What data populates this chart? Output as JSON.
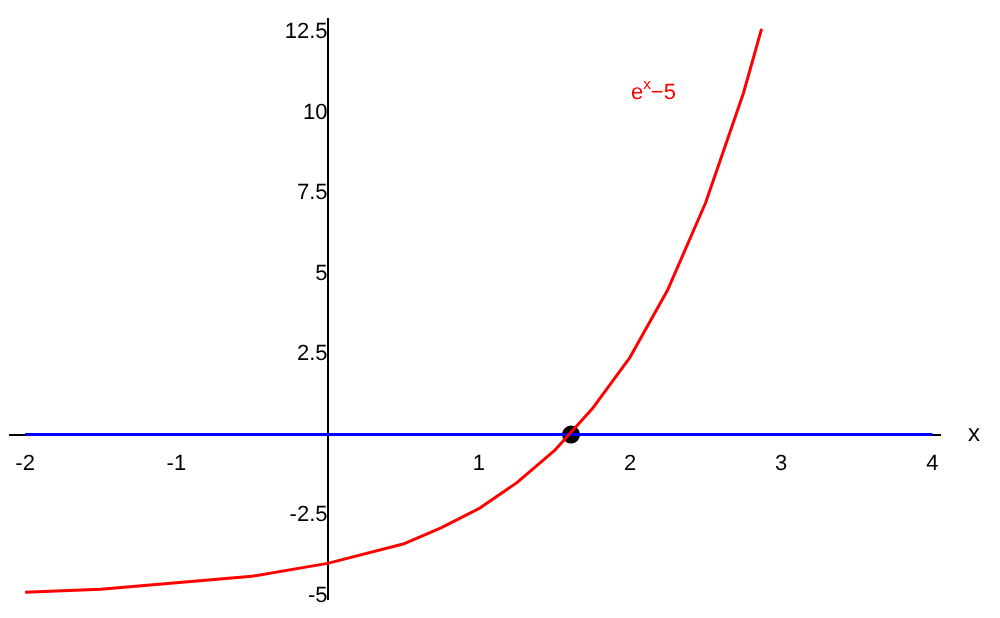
{
  "chart_data": {
    "type": "line",
    "xlabel": "x",
    "xlim": [
      -2.1,
      4.05
    ],
    "ylim": [
      -5.1,
      12.9
    ],
    "xticks": [
      -2,
      -1,
      1,
      2,
      3,
      4
    ],
    "yticks": [
      -5,
      -2.5,
      2.5,
      5,
      7.5,
      10,
      12.5
    ],
    "grid": false,
    "legend": false,
    "marker": "none",
    "series": [
      {
        "name": "e$^{x}$−5",
        "color": "#ff0000",
        "x": [
          -2,
          -1.5,
          -1,
          -0.5,
          0,
          0.5,
          0.75,
          1,
          1.25,
          1.5,
          1.75,
          2,
          2.25,
          2.5,
          2.75,
          2.87
        ],
        "values": [
          -4.9,
          -4.8,
          -4.6,
          -4.4,
          -4,
          -3.4,
          -2.9,
          -2.3,
          -1.5,
          -0.5,
          0.8,
          2.4,
          4.5,
          7.2,
          10.6,
          12.6
        ]
      },
      {
        "color": "#0000ff",
        "x": [
          -2,
          4
        ],
        "values": [
          0,
          0
        ]
      },
      {
        "type": "scatter",
        "marker": "circle",
        "color": "#000000",
        "x": [
          1.61
        ],
        "values": [
          0
        ]
      }
    ]
  }
}
